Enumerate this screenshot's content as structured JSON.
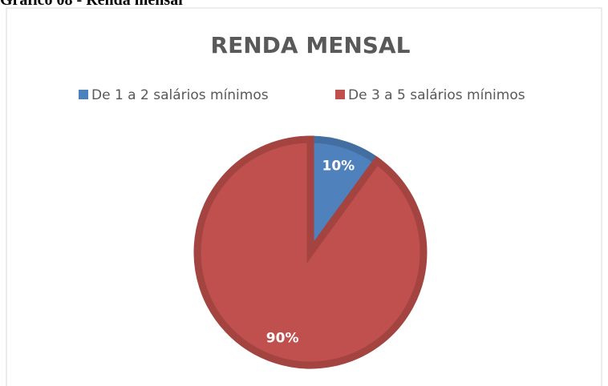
{
  "heading": "Gráfico 08 - Renda mensal",
  "chart_data": {
    "type": "pie",
    "title": "RENDA MENSAL",
    "categories": [
      "De 1 a 2 salários mínimos",
      "De 3 a 5 salários mínimos"
    ],
    "values": [
      10,
      90
    ],
    "value_labels": [
      "10%",
      "90%"
    ],
    "colors": [
      "#4f81bd",
      "#c0504d"
    ],
    "legend": "top"
  }
}
